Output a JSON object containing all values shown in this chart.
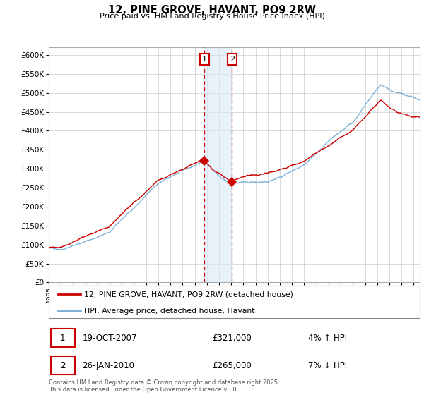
{
  "title": "12, PINE GROVE, HAVANT, PO9 2RW",
  "subtitle": "Price paid vs. HM Land Registry's House Price Index (HPI)",
  "legend_line1": "12, PINE GROVE, HAVANT, PO9 2RW (detached house)",
  "legend_line2": "HPI: Average price, detached house, Havant",
  "footnote": "Contains HM Land Registry data © Crown copyright and database right 2025.\nThis data is licensed under the Open Government Licence v3.0.",
  "sale1_label": "1",
  "sale1_date": "19-OCT-2007",
  "sale1_price": "£321,000",
  "sale1_hpi": "4% ↑ HPI",
  "sale2_label": "2",
  "sale2_date": "26-JAN-2010",
  "sale2_price": "£265,000",
  "sale2_hpi": "7% ↓ HPI",
  "ylim": [
    0,
    620000
  ],
  "yticks": [
    0,
    50000,
    100000,
    150000,
    200000,
    250000,
    300000,
    350000,
    400000,
    450000,
    500000,
    550000,
    600000
  ],
  "hpi_color": "#7aaed4",
  "price_color": "#cc0000",
  "sale1_x": 2007.8,
  "sale1_y": 321000,
  "sale2_x": 2010.07,
  "sale2_y": 265000,
  "vline_color": "#cc0000",
  "shade_color": "#daeaf7",
  "xmin": 1995,
  "xmax": 2025.5
}
